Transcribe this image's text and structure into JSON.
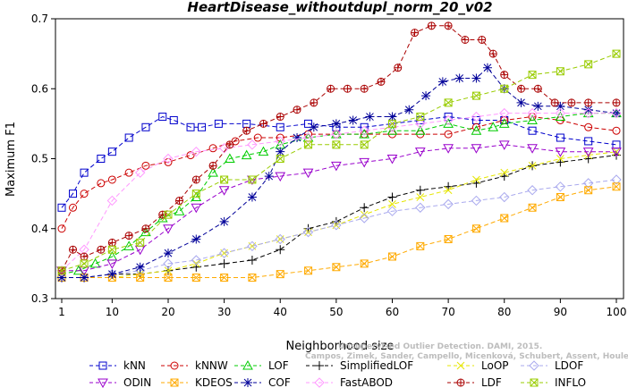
{
  "chart_data": {
    "type": "line",
    "title": "HeartDisease_withoutdupl_norm_20_v02",
    "xlabel": "Neighborhood size",
    "ylabel": "Maximum F1",
    "xlim": [
      1,
      100
    ],
    "ylim": [
      0.3,
      0.7
    ],
    "x_ticks": [
      1,
      10,
      20,
      30,
      40,
      50,
      60,
      70,
      80,
      90,
      100
    ],
    "y_ticks": [
      0.3,
      0.4,
      0.5,
      0.6,
      0.7
    ],
    "x_tick_labels": [
      "1",
      "10",
      "20",
      "30",
      "40",
      "50",
      "60",
      "70",
      "80",
      "90",
      "100"
    ],
    "y_tick_labels": [
      "0.3",
      "0.4",
      "0.5",
      "0.6",
      "0.7"
    ],
    "grid": false,
    "legend_position": "bottom",
    "watermark": {
      "line1": "Unsupervised Outlier Detection. DAMI, 2015.",
      "line2": "Campos, Zimek, Sander, Campello, Micenková, Schubert, Assent, Houle"
    },
    "series": [
      {
        "name": "kNN",
        "color": "#0000cc",
        "marker": "square",
        "dash": "5,3",
        "x": [
          1,
          3,
          5,
          8,
          10,
          13,
          16,
          19,
          21,
          24,
          26,
          29,
          34,
          40,
          45,
          50,
          55,
          60,
          65,
          70,
          75,
          80,
          85,
          90,
          95,
          100
        ],
        "y": [
          0.43,
          0.45,
          0.48,
          0.5,
          0.51,
          0.53,
          0.545,
          0.56,
          0.555,
          0.545,
          0.545,
          0.55,
          0.55,
          0.545,
          0.55,
          0.545,
          0.545,
          0.55,
          0.555,
          0.56,
          0.555,
          0.555,
          0.54,
          0.53,
          0.525,
          0.52
        ]
      },
      {
        "name": "kNNW",
        "color": "#cc0000",
        "marker": "circle",
        "dash": "5,3",
        "x": [
          1,
          3,
          5,
          8,
          10,
          13,
          16,
          20,
          24,
          28,
          32,
          36,
          40,
          45,
          50,
          55,
          60,
          65,
          70,
          75,
          80,
          85,
          90,
          95,
          100
        ],
        "y": [
          0.4,
          0.43,
          0.45,
          0.465,
          0.47,
          0.48,
          0.49,
          0.495,
          0.505,
          0.515,
          0.525,
          0.53,
          0.53,
          0.535,
          0.535,
          0.535,
          0.535,
          0.535,
          0.535,
          0.545,
          0.555,
          0.56,
          0.555,
          0.545,
          0.54
        ]
      },
      {
        "name": "LOF",
        "color": "#00cc00",
        "marker": "triangle",
        "dash": "5,3",
        "x": [
          1,
          4,
          7,
          10,
          13,
          16,
          19,
          22,
          25,
          28,
          31,
          34,
          37,
          40,
          45,
          50,
          55,
          60,
          65,
          70,
          75,
          78,
          80,
          85,
          90,
          95,
          100
        ],
        "y": [
          0.335,
          0.34,
          0.35,
          0.36,
          0.375,
          0.395,
          0.415,
          0.425,
          0.445,
          0.48,
          0.5,
          0.505,
          0.51,
          0.52,
          0.53,
          0.535,
          0.535,
          0.54,
          0.54,
          0.55,
          0.54,
          0.545,
          0.55,
          0.555,
          0.56,
          0.565,
          0.565
        ]
      },
      {
        "name": "SimplifiedLOF",
        "color": "#000000",
        "marker": "plus",
        "dash": "5,3",
        "x": [
          1,
          5,
          10,
          15,
          20,
          25,
          30,
          35,
          40,
          45,
          50,
          55,
          60,
          65,
          70,
          75,
          80,
          85,
          90,
          95,
          100
        ],
        "y": [
          0.33,
          0.33,
          0.335,
          0.335,
          0.34,
          0.345,
          0.35,
          0.355,
          0.37,
          0.4,
          0.41,
          0.43,
          0.445,
          0.455,
          0.46,
          0.465,
          0.475,
          0.49,
          0.495,
          0.5,
          0.505
        ]
      },
      {
        "name": "LoOP",
        "color": "#e6e600",
        "marker": "cross",
        "dash": "5,3",
        "x": [
          1,
          5,
          10,
          15,
          20,
          25,
          30,
          35,
          40,
          45,
          50,
          55,
          60,
          65,
          70,
          75,
          80,
          85,
          90,
          95,
          100
        ],
        "y": [
          0.33,
          0.33,
          0.33,
          0.335,
          0.34,
          0.35,
          0.365,
          0.375,
          0.385,
          0.395,
          0.405,
          0.42,
          0.435,
          0.445,
          0.455,
          0.47,
          0.48,
          0.49,
          0.5,
          0.505,
          0.51
        ]
      },
      {
        "name": "LDOF",
        "color": "#aaaaee",
        "marker": "diamond",
        "dash": "5,3",
        "x": [
          1,
          5,
          10,
          15,
          20,
          25,
          30,
          35,
          40,
          45,
          50,
          55,
          60,
          65,
          70,
          75,
          80,
          85,
          90,
          95,
          100
        ],
        "y": [
          0.33,
          0.33,
          0.335,
          0.34,
          0.35,
          0.355,
          0.365,
          0.375,
          0.385,
          0.395,
          0.405,
          0.415,
          0.425,
          0.43,
          0.435,
          0.44,
          0.445,
          0.455,
          0.46,
          0.465,
          0.47
        ]
      },
      {
        "name": "ODIN",
        "color": "#9900cc",
        "marker": "invtriangle",
        "dash": "5,3",
        "x": [
          1,
          5,
          10,
          15,
          20,
          25,
          30,
          35,
          40,
          45,
          50,
          55,
          60,
          65,
          70,
          75,
          80,
          85,
          90,
          95,
          100
        ],
        "y": [
          0.34,
          0.34,
          0.35,
          0.37,
          0.4,
          0.43,
          0.455,
          0.47,
          0.475,
          0.48,
          0.49,
          0.495,
          0.5,
          0.51,
          0.515,
          0.515,
          0.52,
          0.515,
          0.51,
          0.51,
          0.51
        ]
      },
      {
        "name": "KDEOS",
        "color": "#ffaa00",
        "marker": "xsquare",
        "dash": "5,3",
        "x": [
          1,
          5,
          10,
          15,
          20,
          25,
          30,
          35,
          40,
          45,
          50,
          55,
          60,
          65,
          70,
          75,
          80,
          85,
          90,
          95,
          100
        ],
        "y": [
          0.33,
          0.33,
          0.33,
          0.33,
          0.33,
          0.33,
          0.33,
          0.33,
          0.335,
          0.34,
          0.345,
          0.35,
          0.36,
          0.375,
          0.385,
          0.4,
          0.415,
          0.43,
          0.445,
          0.455,
          0.46
        ]
      },
      {
        "name": "COF",
        "color": "#000099",
        "marker": "star",
        "dash": "5,3",
        "x": [
          1,
          5,
          10,
          15,
          20,
          25,
          30,
          35,
          38,
          40,
          43,
          46,
          50,
          53,
          56,
          60,
          63,
          66,
          69,
          72,
          75,
          77,
          80,
          83,
          86,
          90,
          95,
          100
        ],
        "y": [
          0.33,
          0.33,
          0.335,
          0.345,
          0.365,
          0.385,
          0.41,
          0.445,
          0.475,
          0.51,
          0.53,
          0.545,
          0.55,
          0.555,
          0.56,
          0.56,
          0.57,
          0.59,
          0.61,
          0.615,
          0.615,
          0.63,
          0.6,
          0.58,
          0.575,
          0.575,
          0.57,
          0.565
        ]
      },
      {
        "name": "FastABOD",
        "color": "#ff99ff",
        "marker": "diamond",
        "dash": "5,3",
        "x": [
          1,
          5,
          10,
          15,
          20,
          25,
          30,
          35,
          40,
          45,
          50,
          55,
          60,
          65,
          70,
          75,
          80,
          85,
          90,
          95,
          100
        ],
        "y": [
          0.34,
          0.37,
          0.44,
          0.48,
          0.5,
          0.51,
          0.515,
          0.52,
          0.525,
          0.53,
          0.535,
          0.54,
          0.545,
          0.55,
          0.555,
          0.56,
          0.565,
          0.565,
          0.565,
          0.565,
          0.565
        ]
      },
      {
        "name": "LDF",
        "color": "#aa0000",
        "marker": "circleplus",
        "dash": "5,3",
        "x": [
          1,
          3,
          5,
          8,
          10,
          13,
          16,
          19,
          22,
          25,
          28,
          31,
          34,
          37,
          40,
          43,
          46,
          49,
          52,
          55,
          58,
          61,
          64,
          67,
          70,
          73,
          76,
          78,
          80,
          83,
          86,
          89,
          92,
          95,
          100
        ],
        "y": [
          0.34,
          0.37,
          0.36,
          0.37,
          0.38,
          0.39,
          0.4,
          0.42,
          0.44,
          0.47,
          0.49,
          0.52,
          0.54,
          0.55,
          0.56,
          0.57,
          0.58,
          0.6,
          0.6,
          0.6,
          0.61,
          0.63,
          0.68,
          0.69,
          0.69,
          0.67,
          0.67,
          0.65,
          0.62,
          0.6,
          0.6,
          0.58,
          0.58,
          0.58,
          0.58
        ]
      },
      {
        "name": "INFLO",
        "color": "#99cc00",
        "marker": "xsquare",
        "dash": "5,3",
        "x": [
          1,
          5,
          10,
          15,
          20,
          25,
          30,
          35,
          40,
          45,
          50,
          55,
          60,
          65,
          70,
          75,
          80,
          85,
          90,
          95,
          100
        ],
        "y": [
          0.34,
          0.35,
          0.37,
          0.38,
          0.42,
          0.45,
          0.47,
          0.47,
          0.5,
          0.52,
          0.52,
          0.52,
          0.55,
          0.56,
          0.58,
          0.59,
          0.6,
          0.62,
          0.625,
          0.635,
          0.65
        ]
      }
    ]
  }
}
